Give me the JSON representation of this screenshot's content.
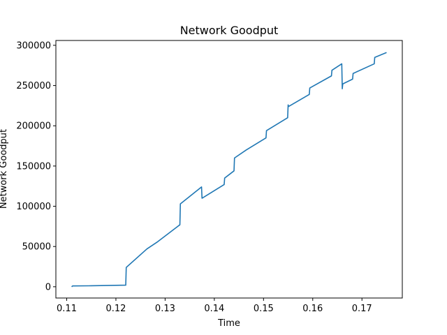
{
  "chart_data": {
    "type": "line",
    "title": "Network Goodput",
    "xlabel": "Time",
    "ylabel": "Network Goodput",
    "xlim": [
      0.1078,
      0.1782
    ],
    "ylim": [
      -14000,
      306000
    ],
    "xticks": [
      0.11,
      0.12,
      0.13,
      0.14,
      0.15,
      0.16,
      0.17
    ],
    "xtick_labels": [
      "0.11",
      "0.12",
      "0.13",
      "0.14",
      "0.15",
      "0.16",
      "0.17"
    ],
    "yticks": [
      0,
      50000,
      100000,
      150000,
      200000,
      250000,
      300000
    ],
    "ytick_labels": [
      "0",
      "50000",
      "100000",
      "150000",
      "200000",
      "250000",
      "300000"
    ],
    "grid": false,
    "series_color": "#1f77b4",
    "series": [
      {
        "x": [
          0.111,
          0.1112,
          0.115,
          0.122,
          0.1221,
          0.1263,
          0.1285,
          0.133,
          0.1331,
          0.1374,
          0.1375,
          0.142,
          0.1421,
          0.144,
          0.1441,
          0.1465,
          0.1505,
          0.1506,
          0.1549,
          0.155,
          0.1551,
          0.1593,
          0.1594,
          0.1638,
          0.1639,
          0.1659,
          0.166,
          0.1661,
          0.1681,
          0.1682,
          0.1725,
          0.1726,
          0.175
        ],
        "y": [
          0,
          1000,
          1200,
          2000,
          24000,
          47000,
          56000,
          77000,
          103000,
          124000,
          110000,
          127000,
          135000,
          144000,
          160000,
          170000,
          185000,
          194000,
          210000,
          226000,
          224000,
          239000,
          247000,
          262000,
          269000,
          277000,
          246000,
          252000,
          258000,
          265000,
          277000,
          285000,
          291000
        ]
      }
    ]
  }
}
